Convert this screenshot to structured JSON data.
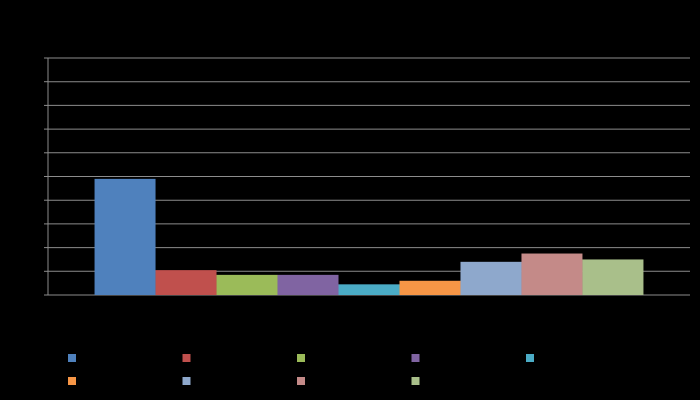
{
  "chart_data": {
    "type": "bar",
    "categories": [
      null
    ],
    "series": [
      {
        "color": "#4f81bd",
        "values": [
          4.9
        ]
      },
      {
        "color": "#c0504d",
        "values": [
          1.05
        ]
      },
      {
        "color": "#9bbb59",
        "values": [
          0.85
        ]
      },
      {
        "color": "#8064a2",
        "values": [
          0.85
        ]
      },
      {
        "color": "#4bacc6",
        "values": [
          0.45
        ]
      },
      {
        "color": "#f79646",
        "values": [
          0.6
        ]
      },
      {
        "color": "#8ea8cc",
        "values": [
          1.4
        ]
      },
      {
        "color": "#c48a88",
        "values": [
          1.75
        ]
      },
      {
        "color": "#a9bf8a",
        "values": [
          1.5
        ]
      }
    ],
    "ylim": [
      0,
      10
    ],
    "yticks": [
      0,
      1,
      2,
      3,
      4,
      5,
      6,
      7,
      8,
      9,
      10
    ],
    "grid": true
  }
}
